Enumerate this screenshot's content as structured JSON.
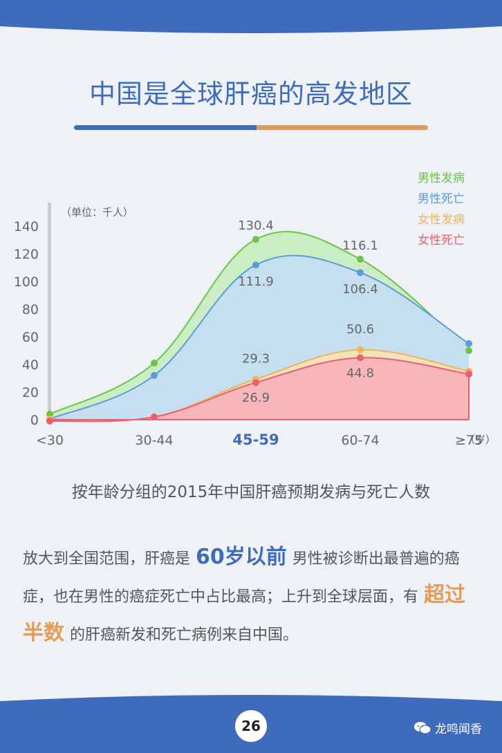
{
  "title": "中国是全球肝癌的高发地区",
  "caption": "按年龄分组的2015年中国肝癌预期发病与死亡人数",
  "paragraph": {
    "part1": "放大到全国范围，肝癌是",
    "highlight1": "60岁以前",
    "part2": "男性被诊断出最普遍的癌症，也在男性的癌症死亡中占比最高；上升到全球层面，有",
    "highlight2": "超过半数",
    "part3": "的肝癌新发和死亡病例来自中国。"
  },
  "page_number": "26",
  "watermark": "龙鸣闻香",
  "colors": {
    "brand_blue": "#3f6bbd",
    "accent_orange": "#e89a55",
    "male_incidence": "#6cc24a",
    "male_death": "#5b9bd9",
    "female_incidence": "#f0b35a",
    "female_death": "#ea5f6e"
  },
  "chart_data": {
    "type": "area",
    "unit_label": "（单位：千人）",
    "categories": [
      "<30",
      "30-44",
      "45-59",
      "60-74",
      "≥75"
    ],
    "x_unit": "（岁）",
    "highlighted_category": "45-59",
    "yticks": [
      0,
      20,
      40,
      60,
      80,
      100,
      120,
      140
    ],
    "ylim": [
      0,
      140
    ],
    "legend_position": "top-right",
    "series": [
      {
        "name": "男性发病",
        "values": [
          4,
          41,
          130.4,
          116.1,
          50
        ],
        "labeled": [
          false,
          false,
          true,
          true,
          false
        ]
      },
      {
        "name": "男性死亡",
        "values": [
          0.5,
          32,
          111.9,
          106.4,
          55
        ],
        "labeled": [
          false,
          false,
          true,
          true,
          false
        ]
      },
      {
        "name": "女性发病",
        "values": [
          0.5,
          2,
          29.3,
          50.6,
          35
        ],
        "labeled": [
          false,
          false,
          true,
          true,
          false
        ]
      },
      {
        "name": "女性死亡",
        "values": [
          -1,
          2,
          26.9,
          44.8,
          33
        ],
        "labeled": [
          false,
          false,
          true,
          true,
          false
        ]
      }
    ]
  }
}
